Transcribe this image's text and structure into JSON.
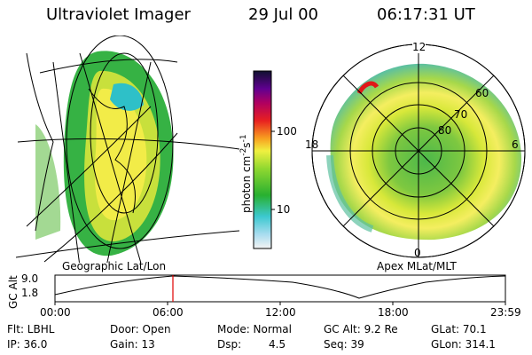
{
  "header": {
    "instrument": "Ultraviolet Imager",
    "date": "29 Jul 00",
    "time": "06:17:31 UT"
  },
  "left_panel": {
    "caption": "Geographic Lat/Lon"
  },
  "right_panel": {
    "caption": "Apex MLat/MLT",
    "mlt_labels": {
      "top": "12",
      "left": "18",
      "right": "6",
      "bottom": "0"
    },
    "mlat_labels": [
      "60",
      "70",
      "80"
    ]
  },
  "colorbar": {
    "label": "photon cm",
    "label_sup1": "-2",
    "label_mid": "s",
    "label_sup2": "-1",
    "ticks": [
      "100",
      "10"
    ]
  },
  "timeline": {
    "y_label": "GC Alt",
    "y_ticks": [
      "9.0",
      "1.8"
    ],
    "x_ticks": [
      "00:00",
      "06:00",
      "12:00",
      "18:00",
      "23:59"
    ],
    "marker_color": "#e00000"
  },
  "info": {
    "flt": "Flt: LBHL",
    "ip": "IP: 36.0",
    "door": "Door: Open",
    "gain": "Gain: 13",
    "mode": "Mode: Normal",
    "dsp": "Dsp:",
    "dsp_val": "4.5",
    "gcalt": "GC Alt: 9.2 Re",
    "seq": "Seq: 39",
    "glat": "GLat: 70.1",
    "glon": "GLon: 314.1"
  }
}
